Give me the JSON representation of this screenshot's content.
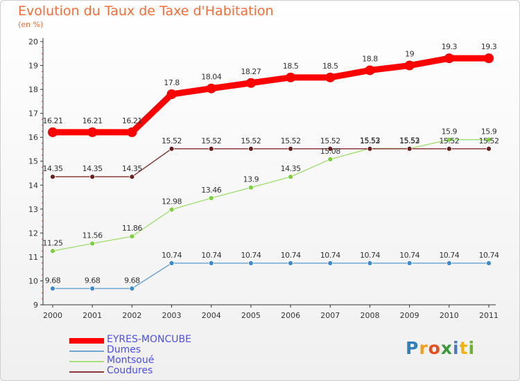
{
  "title": "Evolution du Taux de Taxe d'Habitation",
  "subtitle": "(en %)",
  "logo": {
    "text": "Proxiti",
    "letter_colors": [
      "#2e7fbf",
      "#f4a01a",
      "#e84e1b",
      "#3a9a3a",
      "#4a79c4",
      "#f2b400",
      "#6ab42d"
    ]
  },
  "chart_data": {
    "type": "line",
    "title": "Evolution du Taux de Taxe d'Habitation",
    "ylabel": "(en %)",
    "xlabel": "",
    "x": [
      "2000",
      "2001",
      "2002",
      "2003",
      "2004",
      "2005",
      "2006",
      "2007",
      "2008",
      "2009",
      "2010",
      "2011"
    ],
    "ylim": [
      9,
      20
    ],
    "yticks": [
      "9",
      "10",
      "11",
      "12",
      "13",
      "14",
      "15",
      "16",
      "17",
      "18",
      "19",
      "20"
    ],
    "grid": false,
    "legend_position": "bottom-left",
    "series": [
      {
        "name": "EYRES-MONCUBE",
        "color": "#ff0000",
        "emphasis": true,
        "values": [
          16.21,
          16.21,
          16.21,
          17.8,
          18.04,
          18.27,
          18.5,
          18.5,
          18.8,
          19,
          19.3,
          19.3
        ],
        "labels": [
          "16.21",
          "16.21",
          "16.21",
          "17.8",
          "18.04",
          "18.27",
          "18.5",
          "18.5",
          "18.8",
          "19",
          "19.3",
          "19.3"
        ]
      },
      {
        "name": "Dumes",
        "color": "#6fa6d0",
        "marker_color": "#3d8ad0",
        "values": [
          9.68,
          9.68,
          9.68,
          10.74,
          10.74,
          10.74,
          10.74,
          10.74,
          10.74,
          10.74,
          10.74,
          10.74
        ],
        "labels": [
          "9.68",
          "9.68",
          "9.68",
          "10.74",
          "10.74",
          "10.74",
          "10.74",
          "10.74",
          "10.74",
          "10.74",
          "10.74",
          "10.74"
        ]
      },
      {
        "name": "Montsoué",
        "color": "#a8e07a",
        "marker_color": "#7ad13a",
        "values": [
          11.25,
          11.56,
          11.86,
          12.98,
          13.46,
          13.9,
          14.35,
          15.08,
          15.53,
          15.53,
          15.9,
          15.9
        ],
        "labels": [
          "11.25",
          "11.56",
          "11.86",
          "12.98",
          "13.46",
          "13.9",
          "14.35",
          "15.08",
          "15.53",
          "15.53",
          "15.9",
          "15.9"
        ]
      },
      {
        "name": "Coudures",
        "color": "#8a3a3a",
        "marker_color": "#6a1f1f",
        "values": [
          14.35,
          14.35,
          14.35,
          15.52,
          15.52,
          15.52,
          15.52,
          15.52,
          15.52,
          15.52,
          15.52,
          15.52
        ],
        "labels": [
          "14.35",
          "14.35",
          "14.35",
          "15.52",
          "15.52",
          "15.52",
          "15.52",
          "15.52",
          "15.52",
          "15.52",
          "15.52",
          "15.52"
        ]
      }
    ]
  }
}
